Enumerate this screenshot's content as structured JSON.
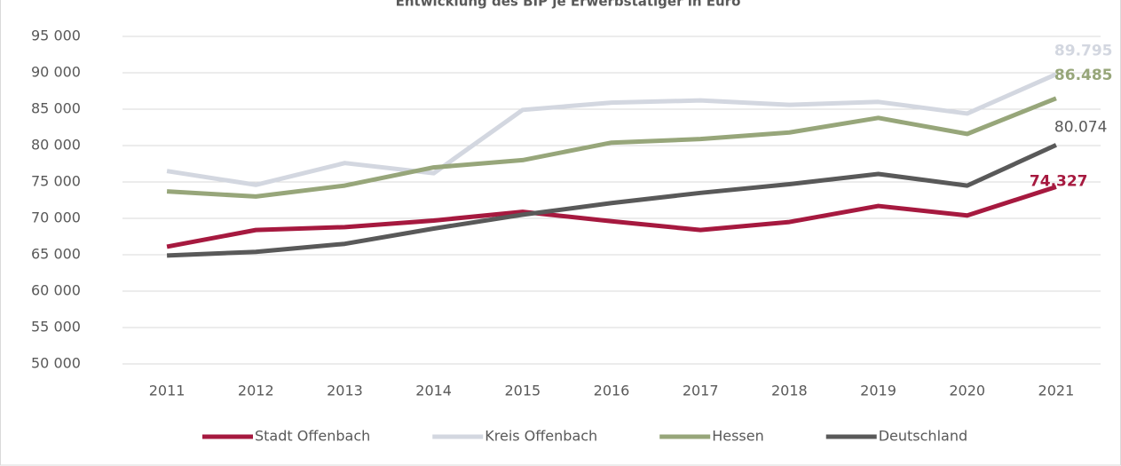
{
  "chart_data": {
    "type": "line",
    "title": "Entwicklung des BIP je Erwerbstätiger in Euro",
    "categories": [
      "2011",
      "2012",
      "2013",
      "2014",
      "2015",
      "2016",
      "2017",
      "2018",
      "2019",
      "2020",
      "2021"
    ],
    "series": [
      {
        "name": "Stadt Offenbach",
        "color": "#a6193f",
        "values": [
          66100,
          68400,
          68800,
          69700,
          70900,
          69600,
          68400,
          69500,
          71700,
          70400,
          74327
        ],
        "value_labels": [
          null,
          null,
          null,
          null,
          null,
          null,
          null,
          null,
          null,
          null,
          "74.327"
        ]
      },
      {
        "name": "Kreis Offenbach",
        "color": "#d3d7e0",
        "values": [
          76500,
          74600,
          77600,
          76200,
          84900,
          85900,
          86200,
          85600,
          86000,
          84400,
          89795
        ],
        "value_labels": [
          null,
          null,
          null,
          null,
          null,
          null,
          null,
          null,
          null,
          null,
          "89.795"
        ]
      },
      {
        "name": "Hessen",
        "color": "#97a67a",
        "values": [
          73700,
          73000,
          74500,
          77000,
          78000,
          80400,
          80900,
          81800,
          83800,
          81600,
          86485
        ],
        "value_labels": [
          null,
          null,
          null,
          null,
          null,
          null,
          null,
          null,
          null,
          null,
          "86.485"
        ]
      },
      {
        "name": "Deutschland",
        "color": "#595959",
        "values": [
          64900,
          65400,
          66500,
          68600,
          70500,
          72100,
          73500,
          74700,
          76100,
          74500,
          80074
        ],
        "value_labels": [
          null,
          null,
          null,
          null,
          null,
          null,
          null,
          null,
          null,
          null,
          "80.074"
        ]
      }
    ],
    "ylim": [
      50000,
      95000
    ],
    "yticks": [
      {
        "value": 50000,
        "label": "50 000"
      },
      {
        "value": 55000,
        "label": "55 000"
      },
      {
        "value": 60000,
        "label": "60 000"
      },
      {
        "value": 65000,
        "label": "65 000"
      },
      {
        "value": 70000,
        "label": "70 000"
      },
      {
        "value": 75000,
        "label": "75 000"
      },
      {
        "value": 80000,
        "label": "80 000"
      },
      {
        "value": 85000,
        "label": "85 000"
      },
      {
        "value": 90000,
        "label": "90 000"
      },
      {
        "value": 95000,
        "label": "95 000"
      }
    ],
    "grid": true,
    "legend": "bottom"
  }
}
